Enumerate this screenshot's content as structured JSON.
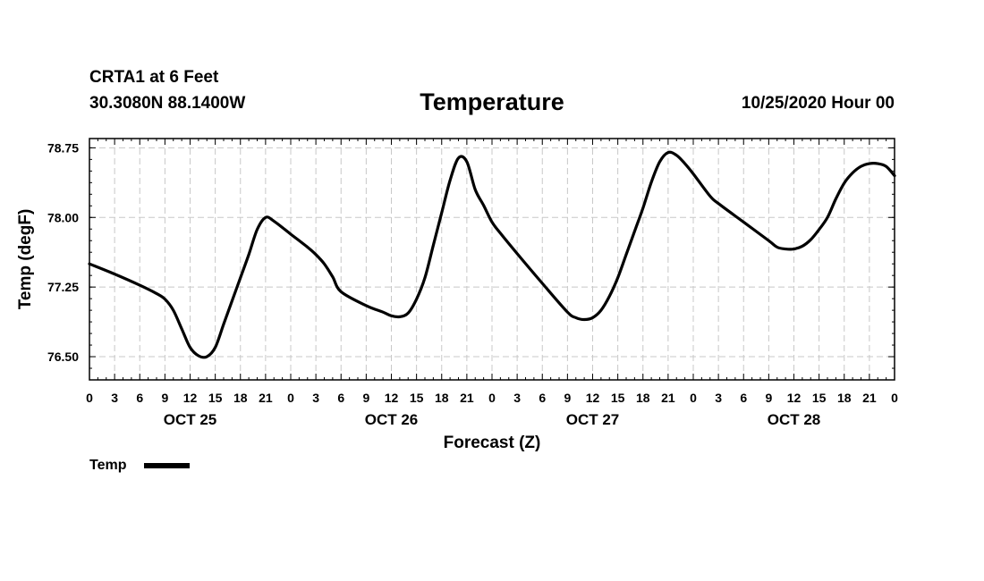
{
  "header": {
    "station": "CRTA1 at 6 Feet",
    "coords": "30.3080N 88.1400W",
    "title": "Temperature",
    "datetime": "10/25/2020 Hour 00"
  },
  "chart_data": {
    "type": "line",
    "title": "Temperature",
    "xlabel": "Forecast (Z)",
    "ylabel": "Temp (degF)",
    "x_unit": "hours from 10/25/2020 00Z",
    "xlim": [
      0,
      96
    ],
    "ylim": [
      76.25,
      78.85
    ],
    "grid": true,
    "y_ticks": [
      {
        "value": 76.5,
        "label": "76.50"
      },
      {
        "value": 77.25,
        "label": "77.25"
      },
      {
        "value": 78.0,
        "label": "78.00"
      },
      {
        "value": 78.75,
        "label": "78.75"
      }
    ],
    "x_ticks": [
      {
        "value": 0,
        "label": "0"
      },
      {
        "value": 3,
        "label": "3"
      },
      {
        "value": 6,
        "label": "6"
      },
      {
        "value": 9,
        "label": "9"
      },
      {
        "value": 12,
        "label": "12"
      },
      {
        "value": 15,
        "label": "15"
      },
      {
        "value": 18,
        "label": "18"
      },
      {
        "value": 21,
        "label": "21"
      },
      {
        "value": 24,
        "label": "0"
      },
      {
        "value": 27,
        "label": "3"
      },
      {
        "value": 30,
        "label": "6"
      },
      {
        "value": 33,
        "label": "9"
      },
      {
        "value": 36,
        "label": "12"
      },
      {
        "value": 39,
        "label": "15"
      },
      {
        "value": 42,
        "label": "18"
      },
      {
        "value": 45,
        "label": "21"
      },
      {
        "value": 48,
        "label": "0"
      },
      {
        "value": 51,
        "label": "3"
      },
      {
        "value": 54,
        "label": "6"
      },
      {
        "value": 57,
        "label": "9"
      },
      {
        "value": 60,
        "label": "12"
      },
      {
        "value": 63,
        "label": "15"
      },
      {
        "value": 66,
        "label": "18"
      },
      {
        "value": 69,
        "label": "21"
      },
      {
        "value": 72,
        "label": "0"
      },
      {
        "value": 75,
        "label": "3"
      },
      {
        "value": 78,
        "label": "6"
      },
      {
        "value": 81,
        "label": "9"
      },
      {
        "value": 84,
        "label": "12"
      },
      {
        "value": 87,
        "label": "15"
      },
      {
        "value": 90,
        "label": "18"
      },
      {
        "value": 93,
        "label": "21"
      },
      {
        "value": 96,
        "label": "0"
      }
    ],
    "day_labels": [
      {
        "value": 12,
        "label": "OCT 25"
      },
      {
        "value": 36,
        "label": "OCT 26"
      },
      {
        "value": 60,
        "label": "OCT 27"
      },
      {
        "value": 84,
        "label": "OCT 28"
      }
    ],
    "series": [
      {
        "name": "Temp",
        "color": "#000000",
        "x": [
          0,
          3,
          6,
          8,
          9,
          10,
          11,
          12,
          13,
          14,
          15,
          16,
          17,
          18,
          19,
          20,
          21,
          22,
          24,
          26,
          27,
          28,
          29,
          30,
          33,
          35,
          36,
          37,
          38,
          39,
          40,
          41,
          42,
          43,
          44,
          45,
          46,
          47,
          48,
          49,
          51,
          54,
          57,
          58,
          59,
          60,
          61,
          62,
          63,
          64,
          65,
          66,
          67,
          68,
          69,
          70,
          71,
          72,
          74,
          75,
          78,
          81,
          82,
          83,
          84,
          85,
          86,
          87,
          88,
          89,
          90,
          91,
          92,
          93,
          94,
          95,
          96
        ],
        "values": [
          77.5,
          77.39,
          77.27,
          77.18,
          77.12,
          77.0,
          76.8,
          76.6,
          76.51,
          76.5,
          76.6,
          76.85,
          77.1,
          77.35,
          77.6,
          77.87,
          78.0,
          77.96,
          77.82,
          77.68,
          77.6,
          77.5,
          77.36,
          77.2,
          77.05,
          76.98,
          76.94,
          76.93,
          76.97,
          77.12,
          77.35,
          77.7,
          78.05,
          78.4,
          78.64,
          78.6,
          78.3,
          78.13,
          77.95,
          77.83,
          77.61,
          77.29,
          76.98,
          76.92,
          76.9,
          76.92,
          77.0,
          77.15,
          77.35,
          77.6,
          77.85,
          78.1,
          78.38,
          78.6,
          78.7,
          78.67,
          78.58,
          78.47,
          78.23,
          78.15,
          77.95,
          77.75,
          77.68,
          77.66,
          77.66,
          77.69,
          77.76,
          77.87,
          78.0,
          78.2,
          78.37,
          78.48,
          78.55,
          78.58,
          78.58,
          78.55,
          78.45
        ]
      }
    ],
    "legend": {
      "label": "Temp",
      "position": "bottom-left"
    }
  }
}
